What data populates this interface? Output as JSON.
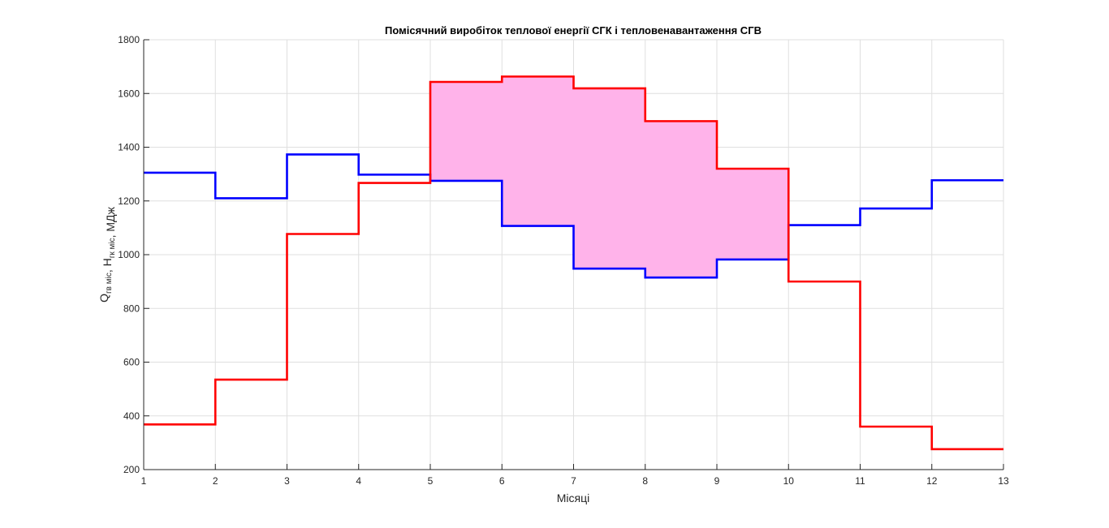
{
  "chart_data": {
    "type": "line",
    "step": "post",
    "title": "Помісячний виробіток теплової енергії СГК і тепловенавантаження СГВ",
    "xlabel": "Місяці",
    "ylabel": {
      "parts": [
        {
          "text": "Q",
          "sub": "гв міс"
        },
        {
          "text": ", H",
          "sub": "гк міс"
        },
        {
          "text": ", МДж",
          "sub": ""
        }
      ]
    },
    "xlim": [
      1,
      13
    ],
    "ylim": [
      200,
      1800
    ],
    "xticks": [
      "1",
      "2",
      "3",
      "4",
      "5",
      "6",
      "7",
      "8",
      "9",
      "10",
      "11",
      "12",
      "13"
    ],
    "yticks": [
      "200",
      "400",
      "600",
      "800",
      "1000",
      "1200",
      "1400",
      "1600",
      "1800"
    ],
    "grid": true,
    "x": [
      1,
      2,
      3,
      4,
      5,
      6,
      7,
      8,
      9,
      10,
      11,
      12,
      13
    ],
    "series": [
      {
        "color": "#0000ff",
        "values": [
          1305,
          1210,
          1373,
          1298,
          1275,
          1107,
          948,
          915,
          982,
          1110,
          1172,
          1277,
          1277
        ]
      },
      {
        "color": "#ff0000",
        "values": [
          368,
          535,
          1077,
          1267,
          1643,
          1663,
          1619,
          1497,
          1320,
          900,
          360,
          276,
          276
        ]
      }
    ],
    "fill": {
      "color": "#ffb3ea",
      "from_x": 5,
      "to_x": 10
    }
  }
}
